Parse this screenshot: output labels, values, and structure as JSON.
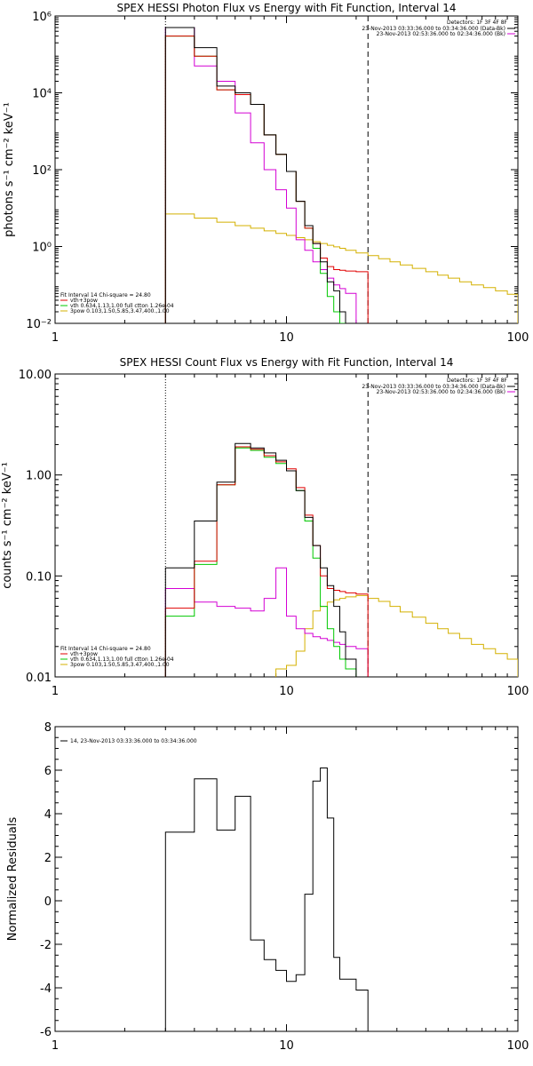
{
  "chart_data": [
    {
      "type": "line",
      "title": "SPEX HESSI Photon Flux vs Energy with Fit Function, Interval 14",
      "xlabel": "",
      "ylabel": "photons s⁻¹ cm⁻² keV⁻¹",
      "xscale": "log",
      "yscale": "log",
      "xlim": [
        1,
        100
      ],
      "ylim": [
        0.01,
        1000000
      ],
      "x_ticks": [
        {
          "v": 1,
          "label": "1"
        },
        {
          "v": 10,
          "label": "10"
        },
        {
          "v": 100,
          "label": "100"
        }
      ],
      "y_ticks": [
        {
          "v": 0.01,
          "label": "10⁻²"
        },
        {
          "v": 1,
          "label": "10⁰"
        },
        {
          "v": 100,
          "label": "10²"
        },
        {
          "v": 10000,
          "label": "10⁴"
        },
        {
          "v": 1000000,
          "label": "10⁶"
        }
      ],
      "vlines": [
        {
          "x": 3,
          "style": "dotted"
        },
        {
          "x": 22.5,
          "style": "dashed"
        }
      ],
      "bin_edges": [
        3,
        4,
        5,
        6,
        7,
        8,
        9,
        10,
        11,
        12,
        13,
        14,
        15,
        16,
        17,
        18,
        20,
        22.5
      ],
      "detectors": "Detectors: 1F 3F 4F 8F",
      "legend_right": [
        {
          "text": "23-Nov-2013 03:33:36.000 to 03:34:36.000 (Data-Bk)",
          "color": "#000000"
        },
        {
          "text": "23-Nov-2013 02:53:36.000 to 02:34:36.000 (Bk)",
          "color": "#d400d4"
        }
      ],
      "legend_left": [
        {
          "text": "Fit Interval 14   Chi-square = 24.80",
          "color": "#000000"
        },
        {
          "text": "vth+3pow",
          "color": "#e00000"
        },
        {
          "text": "vth 0.634,1.13,1.00  full ctton 1.26e-04",
          "color": "#00c800"
        },
        {
          "text": "3pow 0.103,1.50,5.85,3.47,400.,1.00",
          "color": "#d4b000"
        }
      ],
      "series": [
        {
          "color": "#000000",
          "values": [
            500000,
            150000,
            15000,
            10000,
            5000,
            800,
            250,
            90,
            15,
            3.5,
            1.2,
            0.4,
            0.12,
            0.07,
            0.02,
            0.01,
            0.01
          ]
        },
        {
          "color": "#e00000",
          "values": [
            300000,
            90000,
            12000,
            9000,
            5000,
            800,
            250,
            90,
            15,
            3.0,
            1.2,
            0.5,
            0.3,
            0.25,
            0.24,
            0.23,
            0.22
          ]
        },
        {
          "color": "#00c800",
          "values": [
            300000,
            90000,
            12000,
            9000,
            5000,
            800,
            250,
            90,
            15,
            3.0,
            0.9,
            0.2,
            0.05,
            0.02,
            0.01,
            0.01,
            0.01
          ]
        },
        {
          "color": "#d400d4",
          "values": [
            500000,
            50000,
            20000,
            3000,
            500,
            100,
            30,
            10,
            1.5,
            0.8,
            0.4,
            0.25,
            0.15,
            0.1,
            0.08,
            0.06,
            0.01
          ]
        }
      ],
      "yellow_edges": [
        3,
        4,
        5,
        6,
        7,
        8,
        9,
        10,
        11,
        12,
        13,
        14,
        15,
        16,
        17,
        18,
        20,
        22.5,
        25,
        28,
        31,
        35,
        40,
        45,
        50,
        56,
        63,
        71,
        80,
        90,
        100
      ],
      "yellow_values": [
        7,
        5.5,
        4.3,
        3.5,
        3,
        2.55,
        2.2,
        1.95,
        1.7,
        1.5,
        1.33,
        1.2,
        1.08,
        0.98,
        0.9,
        0.8,
        0.68,
        0.58,
        0.48,
        0.4,
        0.33,
        0.27,
        0.22,
        0.18,
        0.15,
        0.12,
        0.1,
        0.085,
        0.07,
        0.057
      ]
    },
    {
      "type": "line",
      "title": "SPEX HESSI Count Flux vs Energy with Fit Function, Interval 14",
      "xlabel": "",
      "ylabel": "counts s⁻¹ cm⁻² keV⁻¹",
      "xscale": "log",
      "yscale": "log",
      "xlim": [
        1,
        100
      ],
      "ylim": [
        0.01,
        10
      ],
      "x_ticks": [
        {
          "v": 1,
          "label": "1"
        },
        {
          "v": 10,
          "label": "10"
        },
        {
          "v": 100,
          "label": "100"
        }
      ],
      "y_ticks": [
        {
          "v": 0.01,
          "label": "0.01"
        },
        {
          "v": 0.1,
          "label": "0.10"
        },
        {
          "v": 1,
          "label": "1.00"
        },
        {
          "v": 10,
          "label": "10.00"
        }
      ],
      "vlines": [
        {
          "x": 3,
          "style": "dotted"
        },
        {
          "x": 22.5,
          "style": "dashed"
        }
      ],
      "bin_edges": [
        3,
        4,
        5,
        6,
        7,
        8,
        9,
        10,
        11,
        12,
        13,
        14,
        15,
        16,
        17,
        18,
        20,
        22.5
      ],
      "detectors": "Detectors: 1F 3F 4F 8F",
      "legend_right": [
        {
          "text": "23-Nov-2013 03:33:36.000 to 03:34:36.000 (Data-Bk)",
          "color": "#000000"
        },
        {
          "text": "23-Nov-2013 02:53:36.000 to 02:34:36.000 (Bk)",
          "color": "#d400d4"
        }
      ],
      "legend_left": [
        {
          "text": "Fit Interval 14   Chi-square = 24.80",
          "color": "#000000"
        },
        {
          "text": "vth+3pow",
          "color": "#e00000"
        },
        {
          "text": "vth 0.634,1.13,1.00  full ctton 1.26e-04",
          "color": "#00c800"
        },
        {
          "text": "3pow 0.103,1.50,5.85,3.47,400.,1.00",
          "color": "#d4b000"
        }
      ],
      "series": [
        {
          "color": "#000000",
          "values": [
            0.12,
            0.35,
            0.85,
            2.05,
            1.85,
            1.65,
            1.4,
            1.1,
            0.7,
            0.38,
            0.2,
            0.12,
            0.08,
            0.05,
            0.028,
            0.015,
            0.01
          ]
        },
        {
          "color": "#e00000",
          "values": [
            0.048,
            0.14,
            0.8,
            1.9,
            1.8,
            1.55,
            1.35,
            1.15,
            0.75,
            0.4,
            0.2,
            0.1,
            0.075,
            0.072,
            0.07,
            0.068,
            0.066
          ]
        },
        {
          "color": "#00c800",
          "values": [
            0.04,
            0.13,
            0.8,
            1.85,
            1.75,
            1.5,
            1.3,
            1.1,
            0.7,
            0.35,
            0.15,
            0.05,
            0.03,
            0.02,
            0.015,
            0.012,
            0.01
          ]
        },
        {
          "color": "#d400d4",
          "values": [
            0.075,
            0.055,
            0.05,
            0.048,
            0.045,
            0.06,
            0.12,
            0.04,
            0.03,
            0.027,
            0.025,
            0.024,
            0.023,
            0.022,
            0.021,
            0.02,
            0.019
          ]
        }
      ],
      "yellow_edges": [
        9,
        10,
        11,
        12,
        13,
        14,
        15,
        16,
        17,
        18,
        20,
        22.5,
        25,
        28,
        31,
        35,
        40,
        45,
        50,
        56,
        63,
        71,
        80,
        90,
        100
      ],
      "yellow_values": [
        0.012,
        0.013,
        0.018,
        0.03,
        0.045,
        0.05,
        0.055,
        0.058,
        0.06,
        0.062,
        0.064,
        0.06,
        0.056,
        0.05,
        0.044,
        0.039,
        0.034,
        0.03,
        0.027,
        0.024,
        0.021,
        0.019,
        0.017,
        0.015
      ]
    },
    {
      "type": "line",
      "title": "",
      "xlabel": "",
      "ylabel": "Normalized Residuals",
      "xscale": "log",
      "yscale": "linear",
      "xlim": [
        1,
        100
      ],
      "ylim": [
        -6,
        8
      ],
      "x_ticks": [
        {
          "v": 1,
          "label": "1"
        },
        {
          "v": 10,
          "label": "10"
        },
        {
          "v": 100,
          "label": "100"
        }
      ],
      "y_ticks": [
        {
          "v": -6,
          "label": "-6"
        },
        {
          "v": -4,
          "label": "-4"
        },
        {
          "v": -2,
          "label": "-2"
        },
        {
          "v": 0,
          "label": "0"
        },
        {
          "v": 2,
          "label": "2"
        },
        {
          "v": 4,
          "label": "4"
        },
        {
          "v": 6,
          "label": "6"
        },
        {
          "v": 8,
          "label": "8"
        }
      ],
      "legend_left": [
        {
          "text": "14, 23-Nov-2013 03:33:36.000 to 03:34:36.000",
          "color": "#000000"
        }
      ],
      "bin_edges": [
        3,
        4,
        5,
        6,
        7,
        8,
        9,
        10,
        11,
        12,
        13,
        14,
        15,
        16,
        17,
        18,
        20,
        22.5
      ],
      "series": [
        {
          "color": "#000000",
          "values": [
            3.15,
            5.6,
            3.25,
            4.8,
            -1.8,
            -2.7,
            -3.2,
            -3.7,
            -3.4,
            0.3,
            5.5,
            6.1,
            3.8,
            -2.6,
            -3.6,
            -3.6,
            -4.1
          ]
        }
      ]
    }
  ]
}
